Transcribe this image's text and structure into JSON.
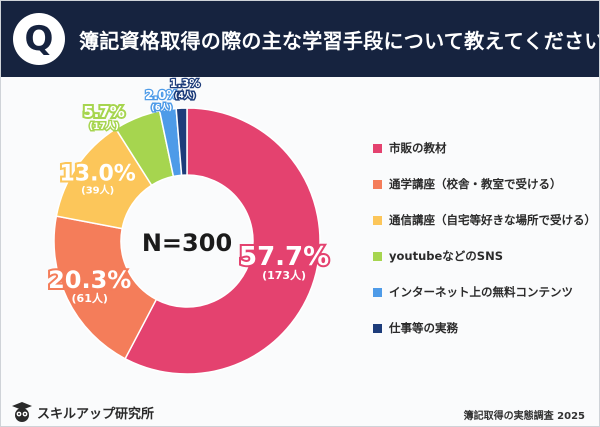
{
  "header": {
    "badge": "Q",
    "title": "簿記資格取得の際の主な学習手段について教えてください"
  },
  "chart_data": {
    "type": "pie",
    "sample_label": "N=300",
    "slices": [
      {
        "label": "市販の教材",
        "percent": 57.7,
        "percent_text": "57.7%",
        "count_text": "(173人)",
        "color": "#e4426f"
      },
      {
        "label": "通学講座（校舎・教室で受ける）",
        "percent": 20.3,
        "percent_text": "20.3%",
        "count_text": "(61人)",
        "color": "#f47d5a"
      },
      {
        "label": "通信講座（自宅等好きな場所で受ける）",
        "percent": 13.0,
        "percent_text": "13.0%",
        "count_text": "(39人)",
        "color": "#fcc65a"
      },
      {
        "label": "youtubeなどのSNS",
        "percent": 5.7,
        "percent_text": "5.7%",
        "count_text": "(17人)",
        "color": "#a6d54f"
      },
      {
        "label": "インターネット上の無料コンテンツ",
        "percent": 2.0,
        "percent_text": "2.0%",
        "count_text": "(6人)",
        "color": "#4e9be8"
      },
      {
        "label": "仕事等の実務",
        "percent": 1.3,
        "percent_text": "1.3%",
        "count_text": "(4人)",
        "color": "#1d3c7a"
      }
    ]
  },
  "footer": {
    "brand": "スキルアップ研究所",
    "note": "簿記取得の実態調査 2025"
  }
}
